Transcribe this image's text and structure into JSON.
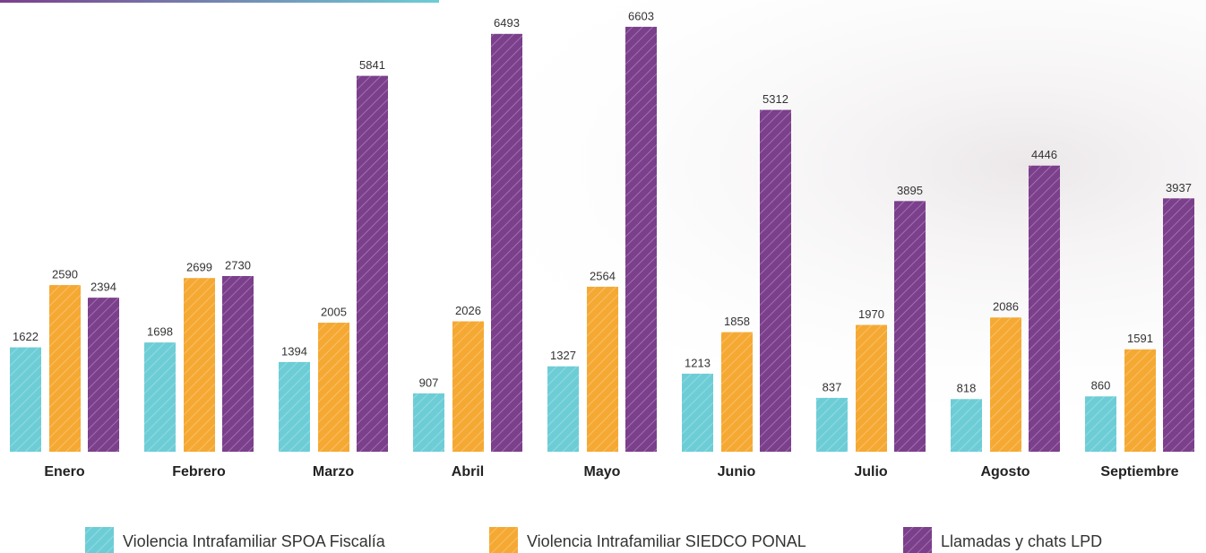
{
  "chart_data": {
    "type": "bar",
    "categories": [
      "Enero",
      "Febrero",
      "Marzo",
      "Abril",
      "Mayo",
      "Junio",
      "Julio",
      "Agosto",
      "Septiembre"
    ],
    "series": [
      {
        "name": "Violencia Intrafamiliar SPOA Fiscalía",
        "color": "#6dcdd6",
        "values": [
          1622,
          1698,
          1394,
          907,
          1327,
          1213,
          837,
          818,
          860
        ]
      },
      {
        "name": "Violencia Intrafamiliar SIEDCO PONAL",
        "color": "#f5a933",
        "values": [
          2590,
          2699,
          2005,
          2026,
          2564,
          1858,
          1970,
          2086,
          1591
        ]
      },
      {
        "name": "Llamadas y chats LPD",
        "color": "#7b3f8c",
        "values": [
          2394,
          2730,
          5841,
          6493,
          6603,
          5312,
          3895,
          4446,
          3937
        ]
      }
    ]
  }
}
